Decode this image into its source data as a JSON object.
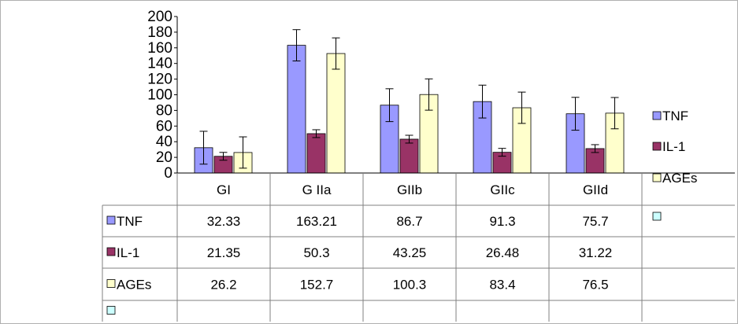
{
  "chart_data": {
    "type": "bar",
    "title": "",
    "xlabel": "",
    "ylabel": "",
    "ylim": [
      0,
      200
    ],
    "ytick_step": 20,
    "categories": [
      "GI",
      "G IIa",
      "GIIb",
      "GIIc",
      "GIId"
    ],
    "series": [
      {
        "name": "TNF",
        "color": "#9999ff",
        "values": [
          32.33,
          163.21,
          86.7,
          91.3,
          75.7
        ],
        "errors": [
          21,
          20,
          21,
          21,
          21
        ],
        "table_values": [
          "32.33",
          "163.21",
          "86.7",
          "91.3",
          "75.7"
        ]
      },
      {
        "name": "IL-1",
        "color": "#993366",
        "values": [
          21.35,
          50.3,
          43.25,
          26.48,
          31.22
        ],
        "errors": [
          5,
          5,
          5,
          5,
          5
        ],
        "table_values": [
          "21.35",
          "50.3",
          "43.25",
          "26.48",
          "31.22"
        ]
      },
      {
        "name": "AGEs",
        "color": "#ffffcc",
        "values": [
          26.2,
          152.7,
          100.3,
          83.4,
          76.5
        ],
        "errors": [
          20,
          20,
          20,
          20,
          20
        ],
        "table_values": [
          "26.2",
          "152.7",
          "100.3",
          "83.4",
          "76.5"
        ]
      }
    ],
    "extra_legend_color": "#ccffff",
    "legend_placement": "right",
    "data_table": true,
    "grid": false
  }
}
